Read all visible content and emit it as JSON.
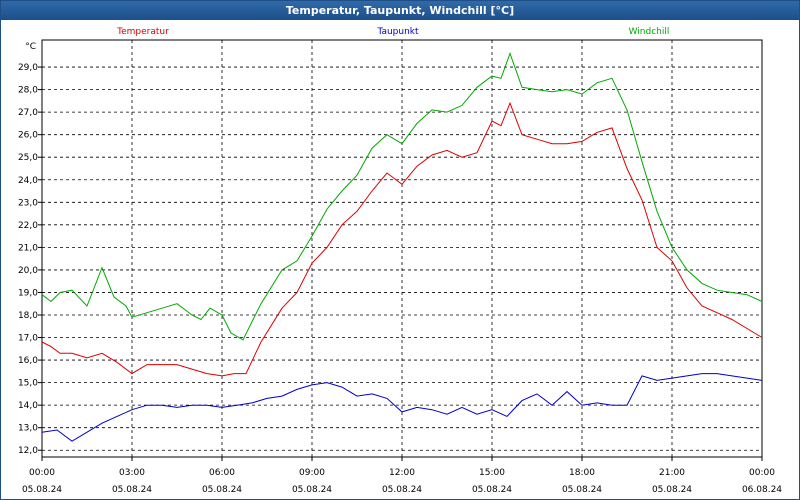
{
  "window": {
    "title": "Temperatur, Taupunkt, Windchill [°C]"
  },
  "colors": {
    "Temperatur": "#dd0000",
    "Taupunkt": "#0000cc",
    "Windchill": "#00aa00"
  },
  "chart_data": {
    "type": "line",
    "title": "Temperatur, Taupunkt, Windchill [°C]",
    "ylabel": "°C",
    "ylim": [
      11.7,
      30.2
    ],
    "yticks": [
      "12,0",
      "13,0",
      "14,0",
      "15,0",
      "16,0",
      "17,0",
      "18,0",
      "19,0",
      "20,0",
      "21,0",
      "22,0",
      "23,0",
      "24,0",
      "25,0",
      "26,0",
      "27,0",
      "28,0",
      "29,0"
    ],
    "xlim": [
      0,
      24
    ],
    "xticks": [
      {
        "time": "00:00",
        "date": "05.08.24"
      },
      {
        "time": "03:00",
        "date": "05.08.24"
      },
      {
        "time": "06:00",
        "date": "05.08.24"
      },
      {
        "time": "09:00",
        "date": "05.08.24"
      },
      {
        "time": "12:00",
        "date": "05.08.24"
      },
      {
        "time": "15:00",
        "date": "05.08.24"
      },
      {
        "time": "18:00",
        "date": "05.08.24"
      },
      {
        "time": "21:00",
        "date": "05.08.24"
      },
      {
        "time": "00:00",
        "date": "06.08.24"
      }
    ],
    "grid": true,
    "legend": "top",
    "series": [
      {
        "name": "Temperatur",
        "x": [
          0,
          0.3,
          0.6,
          1.0,
          1.5,
          2.0,
          2.5,
          3.0,
          3.5,
          4.0,
          4.5,
          5.0,
          5.5,
          6.0,
          6.4,
          6.8,
          7.3,
          8.0,
          8.5,
          9.0,
          9.5,
          10.0,
          10.5,
          11.0,
          11.5,
          12.0,
          12.5,
          13.0,
          13.5,
          14.0,
          14.5,
          15.0,
          15.3,
          15.6,
          16.0,
          16.5,
          17.0,
          17.5,
          18.0,
          18.5,
          19.0,
          19.5,
          20.0,
          20.5,
          21.0,
          21.5,
          22.0,
          22.5,
          23.0,
          23.5,
          24.0
        ],
        "y": [
          16.8,
          16.6,
          16.3,
          16.3,
          16.1,
          16.3,
          15.9,
          15.4,
          15.8,
          15.8,
          15.8,
          15.6,
          15.4,
          15.3,
          15.4,
          15.4,
          16.8,
          18.3,
          19.0,
          20.3,
          21.0,
          22.0,
          22.6,
          23.5,
          24.3,
          23.8,
          24.6,
          25.1,
          25.3,
          25.0,
          25.2,
          26.6,
          26.4,
          27.4,
          26.0,
          25.8,
          25.6,
          25.6,
          25.7,
          26.1,
          26.3,
          24.5,
          23.1,
          21.0,
          20.4,
          19.2,
          18.4,
          18.1,
          17.8,
          17.4,
          17.0
        ]
      },
      {
        "name": "Taupunkt",
        "x": [
          0,
          0.5,
          1.0,
          1.5,
          2.0,
          2.5,
          3.0,
          3.5,
          4.0,
          4.5,
          5.0,
          5.5,
          6.0,
          6.5,
          7.0,
          7.5,
          8.0,
          8.5,
          9.0,
          9.5,
          10.0,
          10.5,
          11.0,
          11.5,
          12.0,
          12.5,
          13.0,
          13.5,
          14.0,
          14.5,
          15.0,
          15.5,
          16.0,
          16.5,
          17.0,
          17.5,
          18.0,
          18.5,
          19.0,
          19.5,
          20.0,
          20.5,
          21.0,
          21.5,
          22.0,
          22.5,
          23.0,
          23.5,
          24.0
        ],
        "y": [
          12.8,
          12.9,
          12.4,
          12.8,
          13.2,
          13.5,
          13.8,
          14.0,
          14.0,
          13.9,
          14.0,
          14.0,
          13.9,
          14.0,
          14.1,
          14.3,
          14.4,
          14.7,
          14.9,
          15.0,
          14.8,
          14.4,
          14.5,
          14.3,
          13.7,
          13.9,
          13.8,
          13.6,
          13.9,
          13.6,
          13.8,
          13.5,
          14.2,
          14.5,
          14.0,
          14.6,
          14.0,
          14.1,
          14.0,
          14.0,
          15.3,
          15.1,
          15.2,
          15.3,
          15.4,
          15.4,
          15.3,
          15.2,
          15.1
        ]
      },
      {
        "name": "Windchill",
        "x": [
          0,
          0.3,
          0.6,
          1.0,
          1.5,
          2.0,
          2.4,
          2.8,
          3.0,
          3.5,
          4.0,
          4.5,
          5.0,
          5.3,
          5.6,
          6.0,
          6.3,
          6.7,
          7.3,
          8.0,
          8.5,
          9.0,
          9.5,
          10.0,
          10.5,
          11.0,
          11.5,
          12.0,
          12.5,
          13.0,
          13.5,
          14.0,
          14.5,
          15.0,
          15.3,
          15.6,
          16.0,
          16.5,
          17.0,
          17.5,
          18.0,
          18.5,
          19.0,
          19.5,
          20.0,
          20.5,
          21.0,
          21.5,
          22.0,
          22.5,
          23.0,
          23.5,
          24.0
        ],
        "y": [
          18.9,
          18.6,
          19.0,
          19.1,
          18.4,
          20.1,
          18.8,
          18.4,
          17.9,
          18.1,
          18.3,
          18.5,
          18.0,
          17.8,
          18.3,
          18.0,
          17.2,
          16.9,
          18.5,
          20.0,
          20.4,
          21.5,
          22.7,
          23.5,
          24.2,
          25.4,
          26.0,
          25.6,
          26.5,
          27.1,
          27.0,
          27.3,
          28.1,
          28.6,
          28.5,
          29.6,
          28.1,
          28.0,
          27.9,
          28.0,
          27.8,
          28.3,
          28.5,
          27.1,
          24.8,
          22.6,
          21.0,
          20.0,
          19.4,
          19.1,
          19.0,
          18.9,
          18.6
        ]
      }
    ]
  }
}
